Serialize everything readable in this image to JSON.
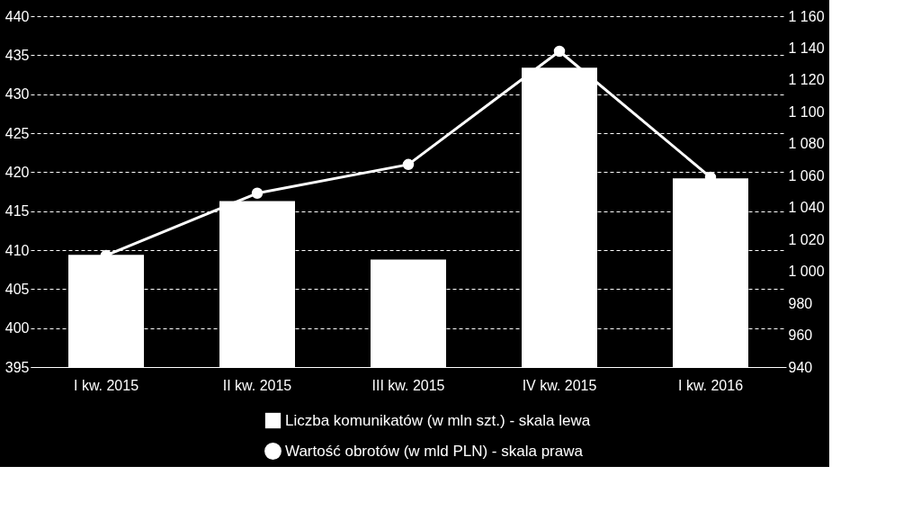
{
  "chart_data": {
    "type": "bar",
    "categories": [
      "I kw. 2015",
      "II kw. 2015",
      "III kw. 2015",
      "IV kw. 2015",
      "I kw. 2016"
    ],
    "series": [
      {
        "name": "Liczba komunikatów (w mln szt.) - skala lewa",
        "color": "#ffffff",
        "values": [
          409.4,
          416.3,
          408.8,
          433.4,
          419.2
        ]
      },
      {
        "name": "Wartość obrotów (w mld PLN) - skala prawa",
        "type": "line",
        "axis": "y2",
        "color": "#ffffff",
        "marker": "circle",
        "values": [
          1010,
          1049,
          1067,
          1138,
          1059
        ]
      }
    ],
    "ylim": [
      395,
      440
    ],
    "yticks": [
      395,
      400,
      405,
      410,
      415,
      420,
      425,
      430,
      435,
      440
    ],
    "y2lim": [
      940,
      1160
    ],
    "y2ticks": [
      940,
      960,
      980,
      {
        "value": 1000,
        "label": "1 000"
      },
      {
        "value": 1020,
        "label": "1 020"
      },
      {
        "value": 1040,
        "label": "1 040"
      },
      {
        "value": 1060,
        "label": "1 060"
      },
      {
        "value": 1080,
        "label": "1 080"
      },
      {
        "value": 1100,
        "label": "1 100"
      },
      {
        "value": 1120,
        "label": "1 120"
      },
      {
        "value": 1140,
        "label": "1 140"
      },
      {
        "value": 1160,
        "label": "1 160"
      }
    ],
    "grid": "y",
    "legend": "bottom"
  }
}
